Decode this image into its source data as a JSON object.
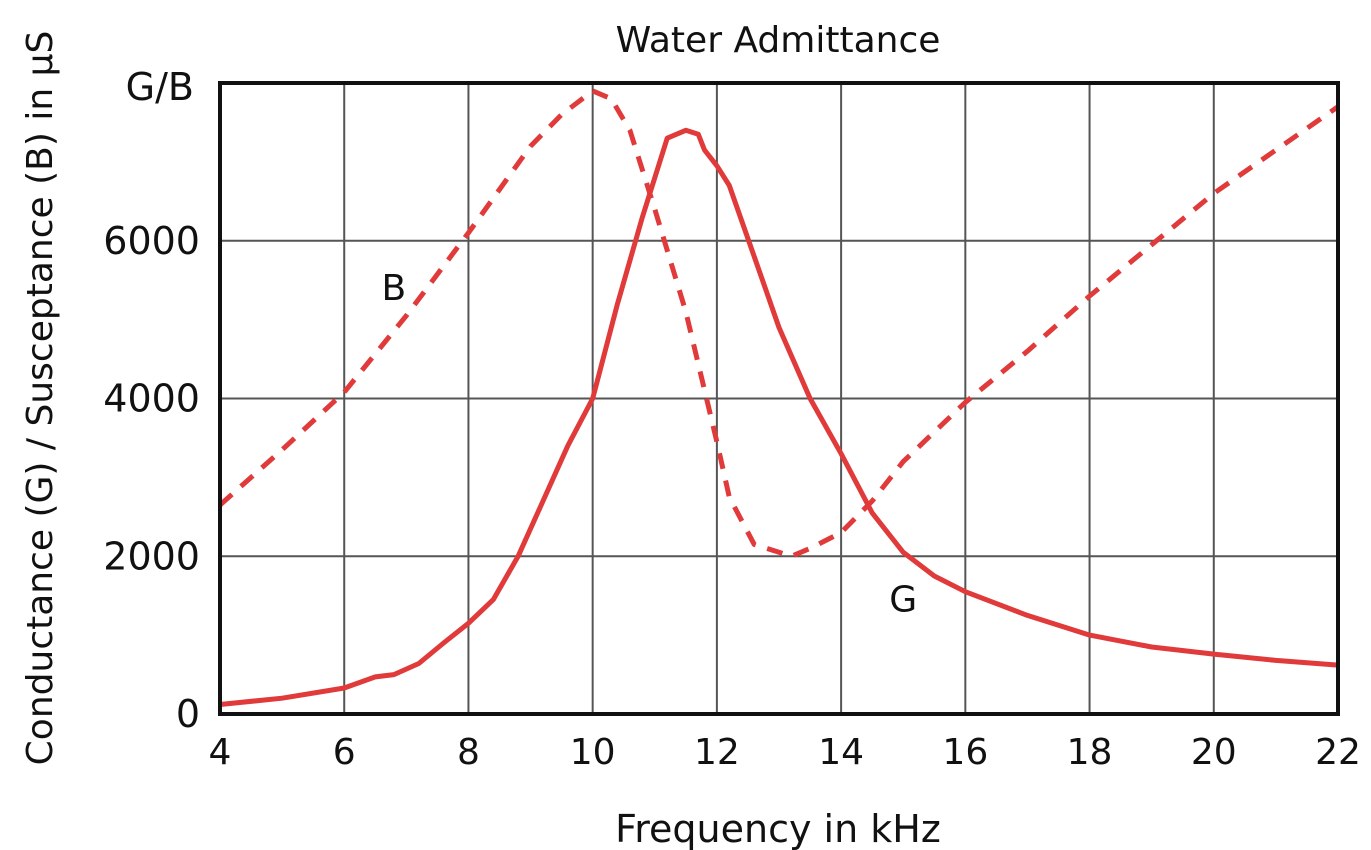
{
  "chart_data": {
    "type": "line",
    "title": "Water Admittance",
    "xlabel": "Frequency in kHz",
    "ylabel": "Conductance (G) / Susceptance (B) in µS",
    "y_top_label": "G/B",
    "xlim": [
      4,
      22
    ],
    "ylim": [
      0,
      8000
    ],
    "x_ticks": [
      4,
      6,
      8,
      10,
      12,
      14,
      16,
      18,
      20,
      22
    ],
    "x_tick_labels": [
      "4",
      "6",
      "8",
      "10",
      "12",
      "14",
      "16",
      "18",
      "20",
      "22"
    ],
    "y_ticks": [
      0,
      2000,
      4000,
      6000
    ],
    "y_tick_labels": [
      "0",
      "2000",
      "4000",
      "6000"
    ],
    "grid": true,
    "line_color": "#e03a3a",
    "series": [
      {
        "name": "B",
        "style": "dashed",
        "x": [
          4.0,
          5.0,
          6.0,
          7.0,
          8.0,
          9.0,
          9.5,
          10.0,
          10.3,
          10.6,
          11.0,
          11.5,
          12.0,
          12.2,
          12.6,
          13.0,
          13.2,
          13.5,
          14.0,
          14.5,
          15.0,
          16.0,
          17.0,
          18.0,
          19.0,
          20.0,
          21.0,
          22.0
        ],
        "values": [
          2650,
          3350,
          4080,
          5050,
          6100,
          7200,
          7600,
          7900,
          7800,
          7400,
          6400,
          5100,
          3450,
          2750,
          2150,
          2050,
          2000,
          2100,
          2300,
          2700,
          3200,
          3950,
          4600,
          5300,
          5950,
          6600,
          7150,
          7700
        ]
      },
      {
        "name": "G",
        "style": "solid",
        "x": [
          4.0,
          5.0,
          6.0,
          6.5,
          6.8,
          7.2,
          7.6,
          8.0,
          8.4,
          8.8,
          9.2,
          9.6,
          10.0,
          10.4,
          10.8,
          11.2,
          11.5,
          11.7,
          11.8,
          12.0,
          12.2,
          12.6,
          13.0,
          13.5,
          14.0,
          14.5,
          15.0,
          15.5,
          16.0,
          17.0,
          18.0,
          19.0,
          20.0,
          21.0,
          22.0
        ],
        "values": [
          120,
          200,
          330,
          470,
          500,
          640,
          900,
          1150,
          1450,
          2000,
          2700,
          3400,
          4000,
          5200,
          6300,
          7300,
          7400,
          7350,
          7150,
          6950,
          6700,
          5800,
          4900,
          4000,
          3300,
          2550,
          2050,
          1750,
          1550,
          1250,
          1000,
          850,
          760,
          680,
          620
        ]
      }
    ],
    "annotations": [
      {
        "text": "B",
        "x": 6.8,
        "y": 5250
      },
      {
        "text": "G",
        "x": 15.0,
        "y": 1300
      }
    ]
  }
}
